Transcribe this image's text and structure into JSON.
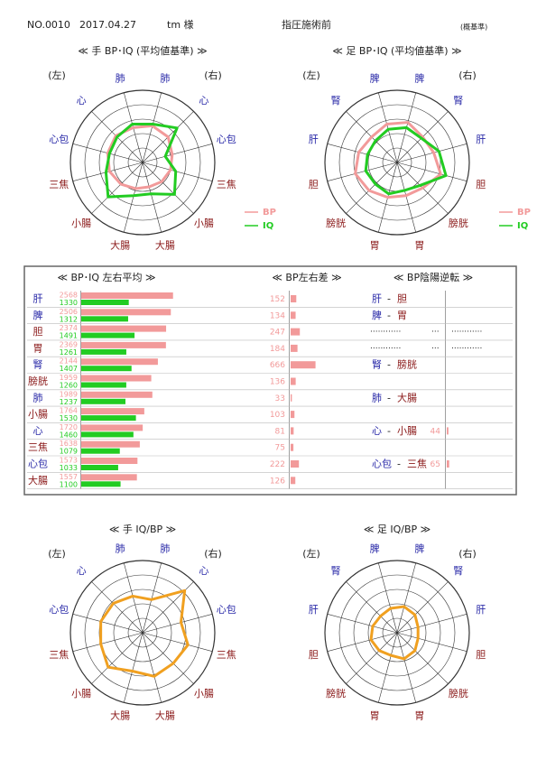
{
  "header": {
    "number": "NO.0010",
    "date": "2017.04.27",
    "patient": "tm 様",
    "session": "指圧施術前",
    "note": "(概基準)"
  },
  "radars": [
    {
      "type": "radar",
      "title": "≪ 手 BP･IQ (平均値基準) ≫",
      "left_label": "(左)",
      "right_label": "(右)",
      "axes": [
        "肺",
        "心",
        "心包",
        "三焦",
        "小腸",
        "大腸",
        "大腸",
        "小腸",
        "三焦",
        "心包",
        "心",
        "肺"
      ],
      "axis_colors": [
        "#2a2aa8",
        "#2a2aa8",
        "#2a2aa8",
        "#8b1a1a",
        "#8b1a1a",
        "#8b1a1a",
        "#8b1a1a",
        "#8b1a1a",
        "#8b1a1a",
        "#2a2aa8",
        "#2a2aa8",
        "#2a2aa8"
      ],
      "rlim": [
        0,
        200
      ],
      "rings": [
        40,
        80,
        120,
        160,
        200
      ],
      "series": [
        {
          "name": "BP",
          "color": "#f29a9a",
          "values": [
            105,
            100,
            85,
            80,
            75,
            70,
            75,
            85,
            95,
            100,
            105,
            100
          ]
        },
        {
          "name": "IQ",
          "color": "#22cc22",
          "values": [
            110,
            135,
            65,
            95,
            125,
            90,
            95,
            135,
            105,
            95,
            100,
            110
          ]
        }
      ]
    },
    {
      "type": "radar",
      "title": "≪ 足 BP･IQ (平均値基準) ≫",
      "left_label": "(左)",
      "right_label": "(右)",
      "axes": [
        "脾",
        "腎",
        "肝",
        "胆",
        "膀胱",
        "胃",
        "胃",
        "膀胱",
        "胆",
        "肝",
        "腎",
        "脾"
      ],
      "axis_colors": [
        "#2a2aa8",
        "#2a2aa8",
        "#2a2aa8",
        "#8b1a1a",
        "#8b1a1a",
        "#8b1a1a",
        "#8b1a1a",
        "#8b1a1a",
        "#8b1a1a",
        "#2a2aa8",
        "#2a2aa8",
        "#2a2aa8"
      ],
      "rlim": [
        0,
        200
      ],
      "rings": [
        40,
        80,
        120,
        160,
        200
      ],
      "series": [
        {
          "name": "BP",
          "color": "#f29a9a",
          "values": [
            115,
            100,
            105,
            125,
            100,
            95,
            100,
            110,
            120,
            110,
            100,
            110
          ]
        },
        {
          "name": "IQ",
          "color": "#22cc22",
          "values": [
            100,
            95,
            120,
            140,
            90,
            80,
            90,
            85,
            90,
            85,
            85,
            95
          ]
        }
      ]
    },
    {
      "type": "radar",
      "title": "≪ 手 IQ/BP ≫",
      "left_label": "(左)",
      "right_label": "(右)",
      "axes": [
        "肺",
        "心",
        "心包",
        "三焦",
        "小腸",
        "大腸",
        "大腸",
        "小腸",
        "三焦",
        "心包",
        "心",
        "肺"
      ],
      "axis_colors": [
        "#2a2aa8",
        "#2a2aa8",
        "#2a2aa8",
        "#8b1a1a",
        "#8b1a1a",
        "#8b1a1a",
        "#8b1a1a",
        "#8b1a1a",
        "#8b1a1a",
        "#2a2aa8",
        "#2a2aa8",
        "#2a2aa8"
      ],
      "rlim": [
        0,
        200
      ],
      "rings": [
        40,
        80,
        120,
        160,
        200
      ],
      "series": [
        {
          "color": "#f0a020",
          "values": [
            95,
            165,
            110,
            130,
            120,
            125,
            110,
            135,
            120,
            120,
            115,
            105
          ]
        }
      ]
    },
    {
      "type": "radar",
      "title": "≪ 足 IQ/BP ≫",
      "left_label": "(左)",
      "right_label": "(右)",
      "axes": [
        "脾",
        "腎",
        "肝",
        "胆",
        "膀胱",
        "胃",
        "胃",
        "膀胱",
        "胆",
        "肝",
        "腎",
        "脾"
      ],
      "axis_colors": [
        "#2a2aa8",
        "#2a2aa8",
        "#2a2aa8",
        "#8b1a1a",
        "#8b1a1a",
        "#8b1a1a",
        "#8b1a1a",
        "#8b1a1a",
        "#8b1a1a",
        "#2a2aa8",
        "#2a2aa8",
        "#2a2aa8"
      ],
      "rlim": [
        0,
        200
      ],
      "rings": [
        40,
        80,
        120,
        160,
        200
      ],
      "series": [
        {
          "color": "#f0a020",
          "values": [
            75,
            70,
            60,
            60,
            70,
            75,
            65,
            70,
            75,
            70,
            65,
            70
          ]
        }
      ]
    }
  ],
  "table": {
    "titles": [
      "≪ BP･IQ 左右平均 ≫",
      "≪ BP左右差 ≫",
      "≪ BP陰陽逆転 ≫"
    ],
    "bp_color": "#f29a9a",
    "iq_color": "#22cc22",
    "avg_xlim": [
      0,
      2600
    ],
    "diff_xlim": [
      0,
      700
    ],
    "rev_xlim": [
      0,
      700
    ],
    "yin_color": "#2a2aa8",
    "yang_color": "#8b1a1a",
    "rows": [
      {
        "organ": "肝",
        "color": "#2a2aa8",
        "bp": 2568,
        "iq": 1330,
        "diff": 152,
        "reversal": {
          "yin": "肝",
          "sep": "-",
          "yang": "胆"
        }
      },
      {
        "organ": "脾",
        "color": "#2a2aa8",
        "bp": 2506,
        "iq": 1312,
        "diff": 134,
        "reversal": {
          "yin": "脾",
          "sep": "-",
          "yang": "胃"
        }
      },
      {
        "organ": "胆",
        "color": "#8b1a1a",
        "bp": 2374,
        "iq": 1491,
        "diff": 247,
        "reversal": {
          "dots": [
            "············",
            "···",
            "············"
          ]
        }
      },
      {
        "organ": "胃",
        "color": "#8b1a1a",
        "bp": 2369,
        "iq": 1261,
        "diff": 184,
        "reversal": {
          "dots": [
            "············",
            "···",
            "············"
          ]
        }
      },
      {
        "organ": "腎",
        "color": "#2a2aa8",
        "bp": 2144,
        "iq": 1407,
        "diff": 666,
        "reversal": {
          "yin": "腎",
          "sep": "-",
          "yang": "膀胱"
        }
      },
      {
        "organ": "膀胱",
        "color": "#8b1a1a",
        "bp": 1959,
        "iq": 1260,
        "diff": 136
      },
      {
        "organ": "肺",
        "color": "#2a2aa8",
        "bp": 1989,
        "iq": 1237,
        "diff": 33,
        "reversal": {
          "yin": "肺",
          "sep": "-",
          "yang": "大腸"
        }
      },
      {
        "organ": "小腸",
        "color": "#8b1a1a",
        "bp": 1764,
        "iq": 1530,
        "diff": 103
      },
      {
        "organ": "心",
        "color": "#2a2aa8",
        "bp": 1720,
        "iq": 1460,
        "diff": 81,
        "reversal": {
          "yin": "心",
          "sep": "-",
          "yang": "小腸",
          "value": 44
        }
      },
      {
        "organ": "三焦",
        "color": "#8b1a1a",
        "bp": 1638,
        "iq": 1079,
        "diff": 75
      },
      {
        "organ": "心包",
        "color": "#2a2aa8",
        "bp": 1573,
        "iq": 1033,
        "diff": 222,
        "reversal": {
          "yin": "心包",
          "sep": "-",
          "yang": "三焦",
          "value": 65
        }
      },
      {
        "organ": "大腸",
        "color": "#8b1a1a",
        "bp": 1557,
        "iq": 1100,
        "diff": 126
      }
    ]
  }
}
